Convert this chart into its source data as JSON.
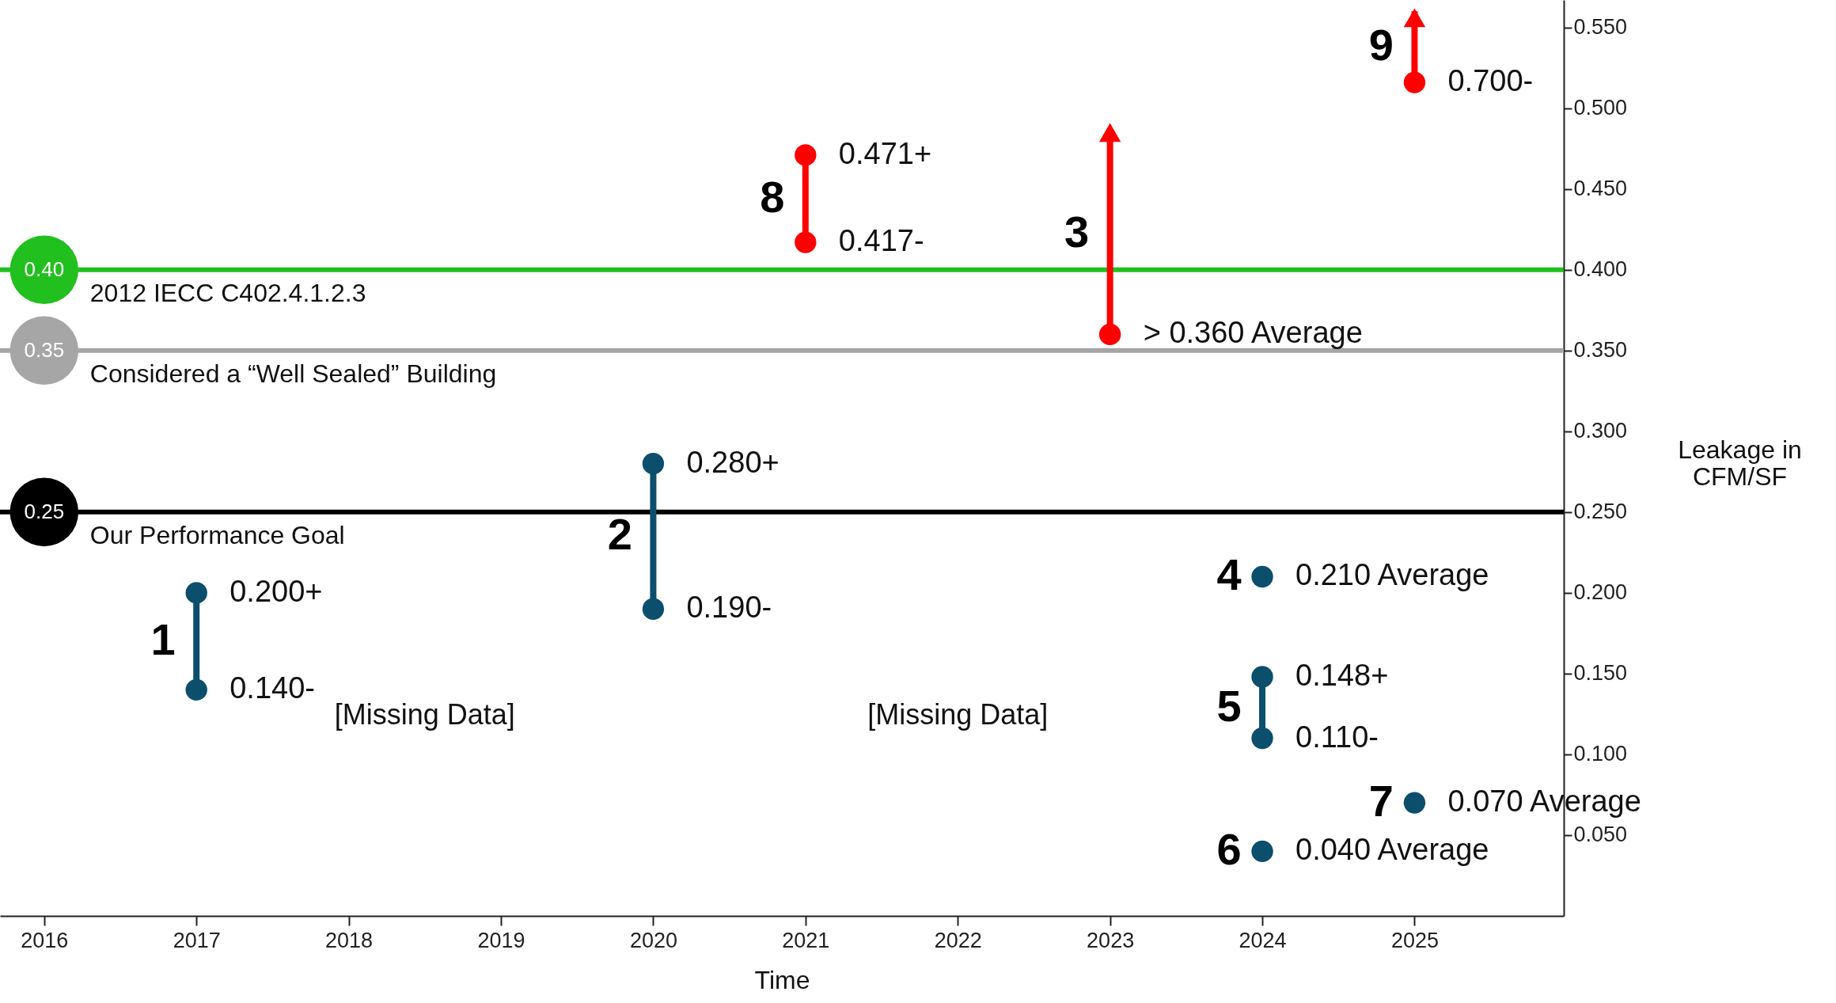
{
  "chart_data": {
    "type": "line",
    "xlabel": "Time",
    "ylabel": "Leakage in\nCFM/SF",
    "xlim": [
      2015.71,
      2025.98
    ],
    "ylim": [
      0,
      0.567
    ],
    "xticks": [
      2016,
      2017,
      2018,
      2019,
      2020,
      2021,
      2022,
      2023,
      2024,
      2025
    ],
    "yticks": [
      {
        "value": 0.05,
        "label": "0.050"
      },
      {
        "value": 0.1,
        "label": "0.100"
      },
      {
        "value": 0.15,
        "label": "0.150"
      },
      {
        "value": 0.2,
        "label": "0.200"
      },
      {
        "value": 0.25,
        "label": "0.250"
      },
      {
        "value": 0.3,
        "label": "0.300"
      },
      {
        "value": 0.35,
        "label": "0.350"
      },
      {
        "value": 0.4,
        "label": "0.400"
      },
      {
        "value": 0.45,
        "label": "0.450"
      },
      {
        "value": 0.5,
        "label": "0.500"
      },
      {
        "value": 0.55,
        "label": "0.550"
      }
    ],
    "grid": false,
    "series": [
      {
        "name": "1",
        "marker": "circle",
        "color": "#0b4f6c",
        "x": [
          2017,
          2017
        ],
        "values": [
          0.14,
          0.2
        ]
      },
      {
        "name": "2",
        "marker": "circle",
        "color": "#0b4f6c",
        "x": [
          2020,
          2020
        ],
        "values": [
          0.19,
          0.28
        ]
      },
      {
        "name": "8",
        "marker": "circle",
        "color": "#ff0000",
        "x": [
          2021,
          2021
        ],
        "values": [
          0.417,
          0.471
        ]
      },
      {
        "name": "3",
        "marker": "none",
        "color": "#ff0000",
        "x": [
          2023,
          2023
        ],
        "values": [
          0.36,
          0.485
        ]
      },
      {
        "type": "scatter",
        "marker": "circle",
        "color": "#ff0000",
        "x": [
          2023
        ],
        "values": [
          0.36
        ]
      },
      {
        "type": "scatter",
        "marker": "triangle",
        "color": "#ff0000",
        "x": [
          2023
        ],
        "values": [
          0.485
        ]
      },
      {
        "name": "9",
        "marker": "none",
        "color": "#ff0000",
        "x": [
          2025,
          2025
        ],
        "values": [
          0.516,
          0.56
        ]
      },
      {
        "type": "scatter",
        "marker": "circle",
        "color": "#ff0000",
        "x": [
          2025
        ],
        "values": [
          0.516
        ]
      },
      {
        "type": "scatter",
        "marker": "triangle",
        "color": "#ff0000",
        "x": [
          2025
        ],
        "values": [
          0.556
        ]
      },
      {
        "name": "4",
        "type": "scatter",
        "marker": "circle",
        "color": "#0b4f6c",
        "x": [
          2024
        ],
        "values": [
          0.21
        ]
      },
      {
        "name": "5",
        "marker": "circle",
        "color": "#0b4f6c",
        "x": [
          2024,
          2024
        ],
        "values": [
          0.11,
          0.148
        ]
      },
      {
        "name": "6",
        "type": "scatter",
        "marker": "circle",
        "color": "#0b4f6c",
        "x": [
          2024
        ],
        "values": [
          0.04
        ]
      },
      {
        "name": "7",
        "type": "scatter",
        "marker": "circle",
        "color": "#0b4f6c",
        "x": [
          2025
        ],
        "values": [
          0.07
        ]
      }
    ],
    "ref_lines": [
      {
        "axis": "y",
        "value": 0.4,
        "label": "2012 IECC C402.4.1.2.3",
        "color": "#22c01e"
      },
      {
        "axis": "y",
        "value": 0.35,
        "label": "Considered a “Well Sealed” Building",
        "color": "#a6a6a6"
      },
      {
        "axis": "y",
        "value": 0.25,
        "label": "Our Performance Goal",
        "color": "#000000"
      }
    ],
    "annotations": [
      "[Missing Data]",
      "[Missing Data]",
      {
        "text": "0.40",
        "x": 2016,
        "y": 0.4
      },
      {
        "text": "0.35",
        "x": 2016,
        "y": 0.35
      },
      {
        "text": "0.25",
        "x": 2016,
        "y": 0.25
      },
      {
        "text": "0.200+",
        "x": 2017,
        "y": 0.2
      },
      {
        "text": "0.140-",
        "x": 2017,
        "y": 0.14
      },
      {
        "text": "0.280+",
        "x": 2020,
        "y": 0.28
      },
      {
        "text": "0.190-",
        "x": 2020,
        "y": 0.19
      },
      {
        "text": "0.471+",
        "x": 2021,
        "y": 0.471
      },
      {
        "text": "0.417-",
        "x": 2021,
        "y": 0.417
      },
      {
        "text": "> 0.360 Average",
        "x": 2023,
        "y": 0.36
      },
      {
        "text": "0.700-",
        "x": 2025,
        "y": 0.516
      },
      {
        "text": "0.210 Average",
        "x": 2024,
        "y": 0.21
      },
      {
        "text": "0.148+",
        "x": 2024,
        "y": 0.148
      },
      {
        "text": "0.110-",
        "x": 2024,
        "y": 0.11
      },
      {
        "text": "0.070 Average",
        "x": 2025,
        "y": 0.07
      },
      {
        "text": "0.040 Average",
        "x": 2024,
        "y": 0.04
      }
    ]
  }
}
